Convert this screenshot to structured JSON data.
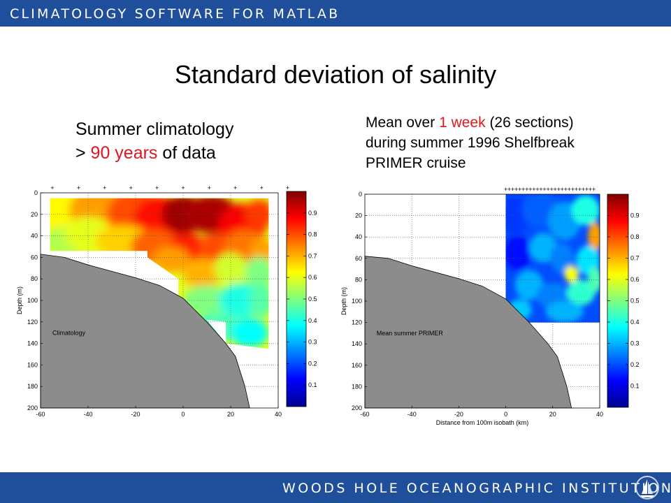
{
  "header": {
    "title": "CLIMATOLOGY SOFTWARE FOR MATLAB"
  },
  "footer": {
    "institution": "WOODS HOLE OCEANOGRAPHIC INSTITUTION",
    "logo_icon": "whoi-sailboat-logo-icon"
  },
  "slide": {
    "title": "Standard deviation of salinity"
  },
  "captions": {
    "left": {
      "line1": "Summer climatology",
      "line2_pre": "> ",
      "line2_red": "90 years",
      "line2_post": " of data"
    },
    "right": {
      "line1_pre": "Mean over ",
      "line1_red": "1 week",
      "line1_post": " (26 sections)",
      "line2": "during summer 1996 Shelfbreak",
      "line3": "PRIMER cruise"
    }
  },
  "colors": {
    "banner": "#1f4f9a",
    "highlight": "#e0161e",
    "seafloor": "#8c8c8c"
  },
  "chart_data": [
    {
      "type": "heatmap",
      "title": "",
      "xlabel": "",
      "ylabel": "Depth (m)",
      "xlim": [
        -60,
        40
      ],
      "ylim": [
        200,
        0
      ],
      "x_ticks": [
        -60,
        -40,
        -20,
        0,
        20,
        40
      ],
      "y_ticks": [
        0,
        20,
        40,
        60,
        80,
        100,
        120,
        140,
        160,
        180,
        200
      ],
      "annotation": "Climatology",
      "station_markers_x": [
        -55,
        -44,
        -33,
        -22,
        -11,
        0,
        11,
        22,
        33,
        44
      ],
      "colorbar": {
        "range": [
          0,
          1
        ],
        "ticks": [
          0.1,
          0.2,
          0.3,
          0.4,
          0.5,
          0.6,
          0.7,
          0.8,
          0.9
        ]
      },
      "bathymetry": [
        [
          -60,
          57
        ],
        [
          -50,
          60
        ],
        [
          -40,
          67
        ],
        [
          -20,
          79
        ],
        [
          -10,
          86
        ],
        [
          0,
          98
        ],
        [
          10,
          120
        ],
        [
          18,
          140
        ],
        [
          22,
          152
        ],
        [
          26,
          180
        ],
        [
          28,
          200
        ]
      ],
      "data_extent": {
        "x": [
          -56,
          36
        ],
        "y": [
          5,
          145
        ]
      }
    },
    {
      "type": "heatmap",
      "title": "",
      "xlabel": "Distance from 100m isobath (km)",
      "ylabel": "Depth (m)",
      "xlim": [
        -60,
        40
      ],
      "ylim": [
        200,
        0
      ],
      "x_ticks": [
        -60,
        -40,
        -20,
        0,
        20,
        40
      ],
      "y_ticks": [
        0,
        20,
        40,
        60,
        80,
        100,
        120,
        140,
        160,
        180,
        200
      ],
      "annotation": "Mean summer PRIMER",
      "station_markers_x": [
        0,
        1.5,
        3,
        4.5,
        6,
        7.5,
        9,
        10.5,
        12,
        13.5,
        15,
        16.5,
        18,
        19.5,
        21,
        22.5,
        24,
        25.5,
        27,
        28.5,
        30,
        31.5,
        33,
        34.5,
        36,
        37.5
      ],
      "colorbar": {
        "range": [
          0,
          1
        ],
        "ticks": [
          0.1,
          0.2,
          0.3,
          0.4,
          0.5,
          0.6,
          0.7,
          0.8,
          0.9
        ]
      },
      "bathymetry": [
        [
          -60,
          58
        ],
        [
          -50,
          60
        ],
        [
          -40,
          67
        ],
        [
          -20,
          79
        ],
        [
          -10,
          86
        ],
        [
          0,
          98
        ],
        [
          10,
          120
        ],
        [
          18,
          140
        ],
        [
          22,
          152
        ],
        [
          26,
          180
        ],
        [
          28,
          200
        ]
      ],
      "data_extent": {
        "x": [
          0,
          40
        ],
        "y": [
          0,
          120
        ]
      }
    }
  ]
}
